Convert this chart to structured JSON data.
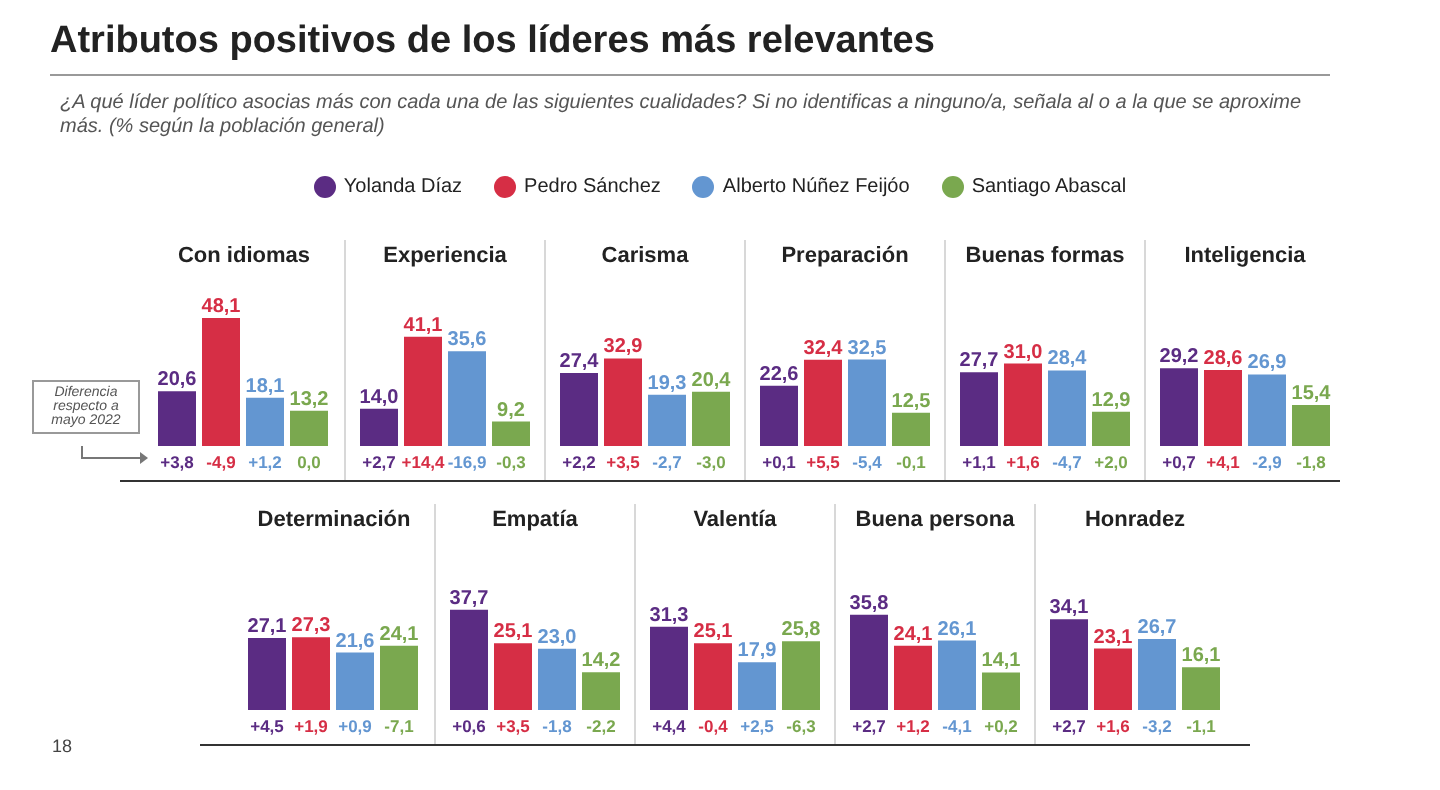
{
  "chart_data": [
    {
      "type": "bar",
      "title": "Atributos positivos de los líderes más relevantes",
      "subtitle": "¿A qué líder político asocias más con cada una de las siguientes cualidades? Si no identificas a ninguno/a, señala al o a la que se aproxime más. (% según la población general)",
      "legend": "top",
      "categories": [
        "Con idiomas"
      ],
      "series": [
        {
          "name": "Yolanda Díaz",
          "color": "#5b2c83",
          "values": [
            20.6
          ],
          "value_labels": [
            "20,6"
          ]
        },
        {
          "name": "Pedro Sánchez",
          "color": "#d62e45",
          "values": [
            48.1
          ],
          "value_labels": [
            "48,1"
          ]
        },
        {
          "name": "Alberto Núñez Feijóo",
          "color": "#6396d1",
          "values": [
            18.1
          ],
          "value_labels": [
            "18,1"
          ]
        },
        {
          "name": "Santiago Abascal",
          "color": "#7aa84f",
          "values": [
            13.2
          ],
          "value_labels": [
            "13,2"
          ]
        }
      ],
      "annotations": [
        "+3,8",
        "-4,9",
        "+1,2",
        "0,0",
        "Diferencia respecto a mayo 2022"
      ]
    },
    {
      "type": "bar",
      "categories": [
        "Experiencia"
      ],
      "series": [
        {
          "color": "#5b2c83",
          "values": [
            14.0
          ],
          "value_labels": [
            "14,0"
          ]
        },
        {
          "color": "#d62e45",
          "values": [
            41.1
          ],
          "value_labels": [
            "41,1"
          ]
        },
        {
          "color": "#6396d1",
          "values": [
            35.6
          ],
          "value_labels": [
            "35,6"
          ]
        },
        {
          "color": "#7aa84f",
          "values": [
            9.2
          ],
          "value_labels": [
            "9,2"
          ]
        }
      ],
      "annotations": [
        "+2,7",
        "+14,4",
        "-16,9",
        "-0,3"
      ]
    },
    {
      "type": "bar",
      "categories": [
        "Carisma"
      ],
      "series": [
        {
          "color": "#5b2c83",
          "values": [
            27.4
          ],
          "value_labels": [
            "27,4"
          ]
        },
        {
          "color": "#d62e45",
          "values": [
            32.9
          ],
          "value_labels": [
            "32,9"
          ]
        },
        {
          "color": "#6396d1",
          "values": [
            19.3
          ],
          "value_labels": [
            "19,3"
          ]
        },
        {
          "color": "#7aa84f",
          "values": [
            20.4
          ],
          "value_labels": [
            "20,4"
          ]
        }
      ],
      "annotations": [
        "+2,2",
        "+3,5",
        "-2,7",
        "-3,0"
      ]
    },
    {
      "type": "bar",
      "categories": [
        "Preparación"
      ],
      "series": [
        {
          "color": "#5b2c83",
          "values": [
            22.6
          ],
          "value_labels": [
            "22,6"
          ]
        },
        {
          "color": "#d62e45",
          "values": [
            32.4
          ],
          "value_labels": [
            "32,4"
          ]
        },
        {
          "color": "#6396d1",
          "values": [
            32.5
          ],
          "value_labels": [
            "32,5"
          ]
        },
        {
          "color": "#7aa84f",
          "values": [
            12.5
          ],
          "value_labels": [
            "12,5"
          ]
        }
      ],
      "annotations": [
        "+0,1",
        "+5,5",
        "-5,4",
        "-0,1"
      ]
    },
    {
      "type": "bar",
      "categories": [
        "Buenas formas"
      ],
      "series": [
        {
          "color": "#5b2c83",
          "values": [
            27.7
          ],
          "value_labels": [
            "27,7"
          ]
        },
        {
          "color": "#d62e45",
          "values": [
            31.0
          ],
          "value_labels": [
            "31,0"
          ]
        },
        {
          "color": "#6396d1",
          "values": [
            28.4
          ],
          "value_labels": [
            "28,4"
          ]
        },
        {
          "color": "#7aa84f",
          "values": [
            12.9
          ],
          "value_labels": [
            "12,9"
          ]
        }
      ],
      "annotations": [
        "+1,1",
        "+1,6",
        "-4,7",
        "+2,0"
      ]
    },
    {
      "type": "bar",
      "categories": [
        "Inteligencia"
      ],
      "series": [
        {
          "color": "#5b2c83",
          "values": [
            29.2
          ],
          "value_labels": [
            "29,2"
          ]
        },
        {
          "color": "#d62e45",
          "values": [
            28.6
          ],
          "value_labels": [
            "28,6"
          ]
        },
        {
          "color": "#6396d1",
          "values": [
            26.9
          ],
          "value_labels": [
            "26,9"
          ]
        },
        {
          "color": "#7aa84f",
          "values": [
            15.4
          ],
          "value_labels": [
            "15,4"
          ]
        }
      ],
      "annotations": [
        "+0,7",
        "+4,1",
        "-2,9",
        "-1,8"
      ]
    },
    {
      "type": "bar",
      "categories": [
        "Determinación"
      ],
      "series": [
        {
          "color": "#5b2c83",
          "values": [
            27.1
          ],
          "value_labels": [
            "27,1"
          ]
        },
        {
          "color": "#d62e45",
          "values": [
            27.3
          ],
          "value_labels": [
            "27,3"
          ]
        },
        {
          "color": "#6396d1",
          "values": [
            21.6
          ],
          "value_labels": [
            "21,6"
          ]
        },
        {
          "color": "#7aa84f",
          "values": [
            24.1
          ],
          "value_labels": [
            "24,1"
          ]
        }
      ],
      "annotations": [
        "+4,5",
        "+1,9",
        "+0,9",
        "-7,1"
      ]
    },
    {
      "type": "bar",
      "categories": [
        "Empatía"
      ],
      "series": [
        {
          "color": "#5b2c83",
          "values": [
            37.7
          ],
          "value_labels": [
            "37,7"
          ]
        },
        {
          "color": "#d62e45",
          "values": [
            25.1
          ],
          "value_labels": [
            "25,1"
          ]
        },
        {
          "color": "#6396d1",
          "values": [
            23.0
          ],
          "value_labels": [
            "23,0"
          ]
        },
        {
          "color": "#7aa84f",
          "values": [
            14.2
          ],
          "value_labels": [
            "14,2"
          ]
        }
      ],
      "annotations": [
        "+0,6",
        "+3,5",
        "-1,8",
        "-2,2"
      ]
    },
    {
      "type": "bar",
      "categories": [
        "Valentía"
      ],
      "series": [
        {
          "color": "#5b2c83",
          "values": [
            31.3
          ],
          "value_labels": [
            "31,3"
          ]
        },
        {
          "color": "#d62e45",
          "values": [
            25.1
          ],
          "value_labels": [
            "25,1"
          ]
        },
        {
          "color": "#6396d1",
          "values": [
            17.9
          ],
          "value_labels": [
            "17,9"
          ]
        },
        {
          "color": "#7aa84f",
          "values": [
            25.8
          ],
          "value_labels": [
            "25,8"
          ]
        }
      ],
      "annotations": [
        "+4,4",
        "-0,4",
        "+2,5",
        "-6,3"
      ]
    },
    {
      "type": "bar",
      "categories": [
        "Buena persona"
      ],
      "series": [
        {
          "color": "#5b2c83",
          "values": [
            35.8
          ],
          "value_labels": [
            "35,8"
          ]
        },
        {
          "color": "#d62e45",
          "values": [
            24.1
          ],
          "value_labels": [
            "24,1"
          ]
        },
        {
          "color": "#6396d1",
          "values": [
            26.1
          ],
          "value_labels": [
            "26,1"
          ]
        },
        {
          "color": "#7aa84f",
          "values": [
            14.1
          ],
          "value_labels": [
            "14,1"
          ]
        }
      ],
      "annotations": [
        "+2,7",
        "+1,2",
        "-4,1",
        "+0,2"
      ]
    },
    {
      "type": "bar",
      "categories": [
        "Honradez"
      ],
      "series": [
        {
          "color": "#5b2c83",
          "values": [
            34.1
          ],
          "value_labels": [
            "34,1"
          ]
        },
        {
          "color": "#d62e45",
          "values": [
            23.1
          ],
          "value_labels": [
            "23,1"
          ]
        },
        {
          "color": "#6396d1",
          "values": [
            26.7
          ],
          "value_labels": [
            "26,7"
          ]
        },
        {
          "color": "#7aa84f",
          "values": [
            16.1
          ],
          "value_labels": [
            "16,1"
          ]
        }
      ],
      "annotations": [
        "+2,7",
        "+1,6",
        "-3,2",
        "-1,1",
        "18"
      ]
    }
  ]
}
